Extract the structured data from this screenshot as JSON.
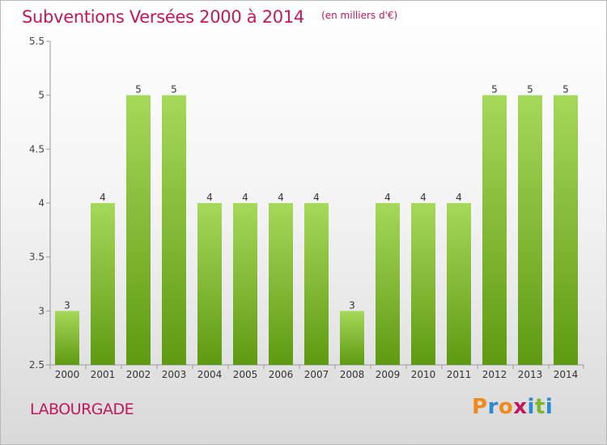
{
  "header": {
    "title": "Subventions Versées 2000 à 2014",
    "unit": "(en milliers d'€)"
  },
  "footer": {
    "commune": "LABOURGADE",
    "logo_text": "Proxiti"
  },
  "colors": {
    "title": "#c2185b",
    "bar_top": "#a6d85a",
    "bar_bottom": "#5f9a12",
    "logo": [
      "#f08a1c",
      "#2a8ad4",
      "#f08a1c",
      "#c2185b",
      "#2a8ad4",
      "#7cb82f",
      "#2a8ad4"
    ]
  },
  "chart_data": {
    "type": "bar",
    "categories": [
      "2000",
      "2001",
      "2002",
      "2003",
      "2004",
      "2005",
      "2006",
      "2007",
      "2008",
      "2009",
      "2010",
      "2011",
      "2012",
      "2013",
      "2014"
    ],
    "values": [
      3,
      4,
      5,
      5,
      4,
      4,
      4,
      4,
      3,
      4,
      4,
      4,
      5,
      5,
      5
    ],
    "data_labels": [
      "3",
      "4",
      "5",
      "5",
      "4",
      "4",
      "4",
      "4",
      "3",
      "4",
      "4",
      "4",
      "5",
      "5",
      "5"
    ],
    "ylim": [
      2.5,
      5.5
    ],
    "yticks": [
      "2.5",
      "3",
      "3.5",
      "4",
      "4.5",
      "5",
      "5.5"
    ],
    "grid": false,
    "title": "Subventions Versées 2000 à 2014",
    "xlabel": "",
    "ylabel": ""
  }
}
